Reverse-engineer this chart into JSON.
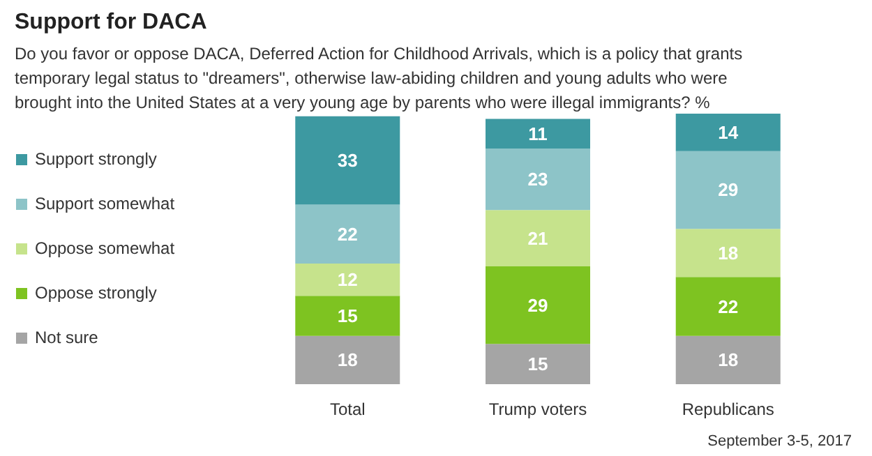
{
  "chart_data": {
    "type": "bar",
    "stacked": true,
    "data_labels": true,
    "legend": "left",
    "grid": false,
    "title": "Support for DACA",
    "subtitle": "Do you favor or oppose DACA, Deferred Action for Childhood Arrivals, which is a policy that grants temporary legal status to \"dreamers\", otherwise law-abiding children and young adults who were brought into the United States at a very young age by parents who were illegal immigrants? %",
    "categories": [
      "Total",
      "Trump voters",
      "Republicans"
    ],
    "series": [
      {
        "name": "Not sure",
        "color": "#a5a5a5",
        "values": [
          18,
          15,
          18
        ]
      },
      {
        "name": "Oppose strongly",
        "color": "#7ec321",
        "values": [
          15,
          29,
          22
        ]
      },
      {
        "name": "Oppose somewhat",
        "color": "#c6e38c",
        "values": [
          12,
          21,
          18
        ]
      },
      {
        "name": "Support somewhat",
        "color": "#8dc4c8",
        "values": [
          22,
          23,
          29
        ]
      },
      {
        "name": "Support strongly",
        "color": "#3d99a1",
        "values": [
          33,
          11,
          14
        ]
      }
    ],
    "annotations": [
      "September 3-5, 2017"
    ]
  }
}
